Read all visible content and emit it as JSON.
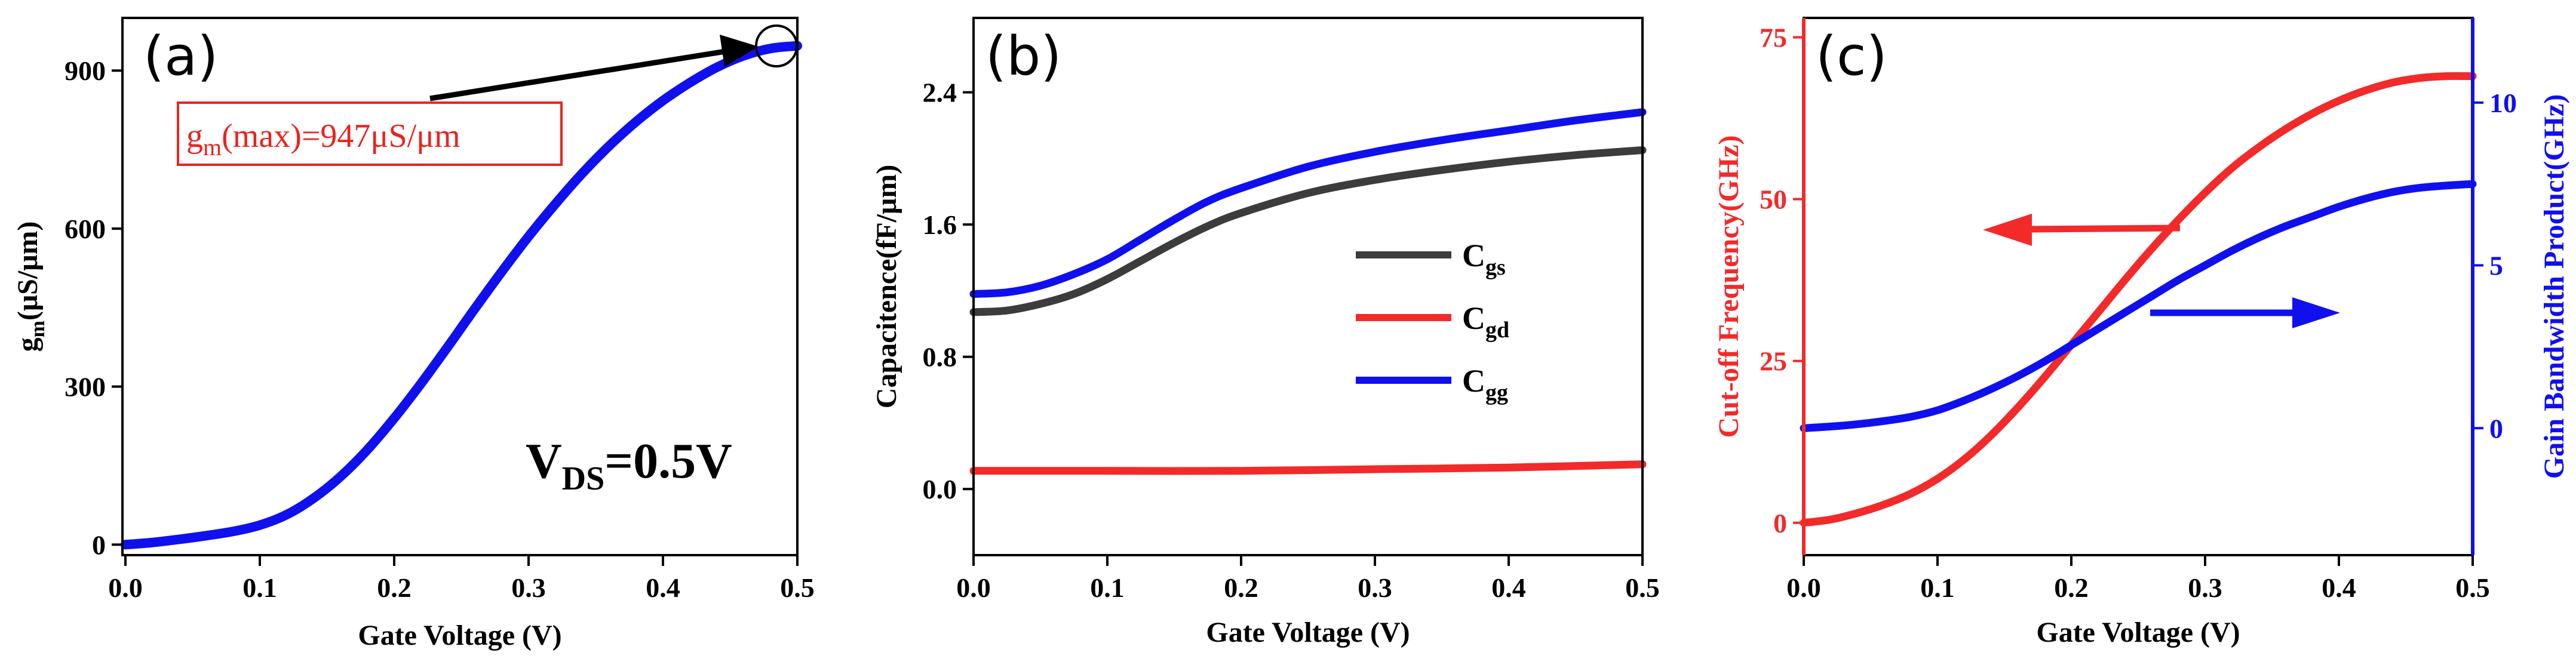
{
  "colors": {
    "red": "#f22a2a",
    "blue": "#1010ee",
    "gray": "#3c3c3c",
    "box_red": "#e8241f"
  },
  "chart_data": [
    {
      "panel": "(a)",
      "type": "line",
      "xlabel": "Gate Voltage (V)",
      "ylabel_main": "g",
      "ylabel_sub": "m",
      "ylabel_rest": "(μS/μm)",
      "xlim": [
        0,
        0.5
      ],
      "ylim": [
        -20,
        1000
      ],
      "x_ticks": [
        0.0,
        0.1,
        0.2,
        0.3,
        0.4,
        0.5
      ],
      "x_tick_labels": [
        "0.0",
        "0.1",
        "0.2",
        "0.3",
        "0.4",
        "0.5"
      ],
      "y_ticks": [
        0,
        300,
        600,
        900
      ],
      "y_tick_labels": [
        "0",
        "300",
        "600",
        "900"
      ],
      "series": [
        {
          "name": "gm",
          "color": "#1010ee",
          "x": [
            0,
            0.02,
            0.04,
            0.06,
            0.08,
            0.1,
            0.12,
            0.14,
            0.16,
            0.18,
            0.2,
            0.22,
            0.24,
            0.26,
            0.28,
            0.3,
            0.32,
            0.34,
            0.36,
            0.38,
            0.4,
            0.42,
            0.44,
            0.46,
            0.48,
            0.5
          ],
          "y": [
            0,
            4,
            10,
            17,
            25,
            37,
            57,
            88,
            129,
            180,
            240,
            306,
            376,
            448,
            518,
            585,
            647,
            705,
            757,
            803,
            843,
            877,
            906,
            928,
            942,
            947
          ]
        }
      ],
      "annotation_max": {
        "pre": "g",
        "sub": "m",
        "post": "(max)=947μS/μm"
      },
      "annotation_vds": {
        "pre": "V",
        "sub": "DS",
        "post": "=0.5V"
      }
    },
    {
      "panel": "(b)",
      "type": "line",
      "xlabel": "Gate Voltage (V)",
      "ylabel": "Capacitence(fF/μm)",
      "xlim": [
        0,
        0.5
      ],
      "ylim": [
        -0.4,
        2.85
      ],
      "x_ticks": [
        0.0,
        0.1,
        0.2,
        0.3,
        0.4,
        0.5
      ],
      "x_tick_labels": [
        "0.0",
        "0.1",
        "0.2",
        "0.3",
        "0.4",
        "0.5"
      ],
      "y_ticks": [
        0.0,
        0.8,
        1.6,
        2.4
      ],
      "y_tick_labels": [
        "0.0",
        "0.8",
        "1.6",
        "2.4"
      ],
      "series": [
        {
          "name": "Cgs",
          "label_main": "C",
          "label_sub": "gs",
          "color": "#3c3c3c",
          "x": [
            0,
            0.025,
            0.05,
            0.075,
            0.1,
            0.125,
            0.15,
            0.175,
            0.2,
            0.25,
            0.3,
            0.35,
            0.4,
            0.45,
            0.5
          ],
          "y": [
            1.07,
            1.08,
            1.12,
            1.18,
            1.27,
            1.38,
            1.49,
            1.59,
            1.67,
            1.79,
            1.87,
            1.93,
            1.98,
            2.02,
            2.05
          ]
        },
        {
          "name": "Cgd",
          "label_main": "C",
          "label_sub": "gd",
          "color": "#f22a2a",
          "x": [
            0,
            0.1,
            0.2,
            0.3,
            0.4,
            0.5
          ],
          "y": [
            0.11,
            0.11,
            0.11,
            0.12,
            0.13,
            0.15
          ]
        },
        {
          "name": "Cgg",
          "label_main": "C",
          "label_sub": "gg",
          "color": "#1010ee",
          "x": [
            0,
            0.025,
            0.05,
            0.075,
            0.1,
            0.125,
            0.15,
            0.175,
            0.2,
            0.25,
            0.3,
            0.35,
            0.4,
            0.45,
            0.5
          ],
          "y": [
            1.18,
            1.19,
            1.23,
            1.3,
            1.39,
            1.51,
            1.63,
            1.74,
            1.82,
            1.95,
            2.04,
            2.11,
            2.17,
            2.23,
            2.28
          ]
        }
      ]
    },
    {
      "panel": "(c)",
      "type": "line",
      "xlabel": "Gate Voltage (V)",
      "ylabel_left": "Cut-off Frequency(GHz)",
      "ylabel_right": "Gain Bandwidth Product(GHz)",
      "xlim": [
        0,
        0.5
      ],
      "ylim_left": [
        -5,
        78
      ],
      "ylim_right": [
        -3.9,
        12.6
      ],
      "x_ticks": [
        0.0,
        0.1,
        0.2,
        0.3,
        0.4,
        0.5
      ],
      "x_tick_labels": [
        "0.0",
        "0.1",
        "0.2",
        "0.3",
        "0.4",
        "0.5"
      ],
      "y_ticks_left": [
        0,
        25,
        50,
        75
      ],
      "y_tick_labels_left": [
        "0",
        "25",
        "50",
        "75"
      ],
      "y_ticks_right": [
        0,
        5,
        10
      ],
      "y_tick_labels_right": [
        "0",
        "5",
        "10"
      ],
      "series": [
        {
          "name": "Cut-off Frequency",
          "axis": "left",
          "color": "#f22a2a",
          "x": [
            0,
            0.02,
            0.04,
            0.06,
            0.08,
            0.1,
            0.12,
            0.14,
            0.16,
            0.18,
            0.2,
            0.22,
            0.24,
            0.26,
            0.28,
            0.3,
            0.32,
            0.34,
            0.36,
            0.38,
            0.4,
            0.42,
            0.44,
            0.46,
            0.48,
            0.5
          ],
          "y": [
            0,
            0.5,
            1.5,
            2.8,
            4.5,
            6.8,
            9.8,
            13.5,
            17.8,
            22.5,
            27.5,
            32.5,
            37.5,
            42.3,
            46.8,
            51.0,
            54.8,
            58.0,
            60.8,
            63.2,
            65.2,
            66.8,
            68.0,
            68.7,
            69.0,
            69.0
          ]
        },
        {
          "name": "Gain Bandwidth Product",
          "axis": "right",
          "color": "#1010ee",
          "x": [
            0,
            0.02,
            0.04,
            0.06,
            0.08,
            0.1,
            0.12,
            0.14,
            0.16,
            0.18,
            0.2,
            0.22,
            0.24,
            0.26,
            0.28,
            0.3,
            0.32,
            0.34,
            0.36,
            0.38,
            0.4,
            0.42,
            0.44,
            0.46,
            0.48,
            0.5
          ],
          "y": [
            0,
            0.05,
            0.12,
            0.22,
            0.35,
            0.55,
            0.85,
            1.2,
            1.6,
            2.05,
            2.55,
            3.05,
            3.55,
            4.05,
            4.55,
            5.0,
            5.45,
            5.85,
            6.2,
            6.5,
            6.8,
            7.05,
            7.25,
            7.38,
            7.45,
            7.5
          ]
        }
      ]
    }
  ]
}
